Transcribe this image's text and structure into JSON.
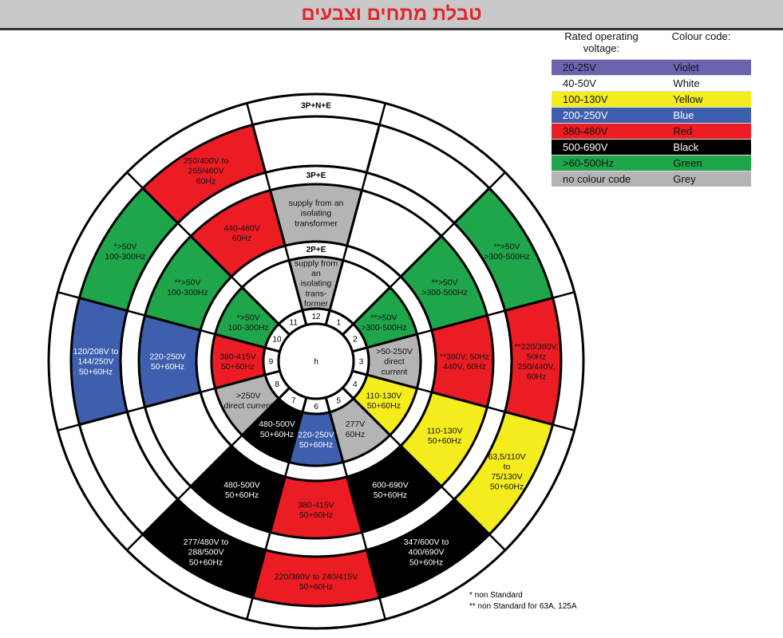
{
  "title": "טבלת מתחים וצבעים",
  "colors": {
    "violet": "#6a64ae",
    "white": "#ffffff",
    "yellow": "#f5ec1d",
    "blue": "#3e5fae",
    "red": "#ec1c24",
    "black": "#000000",
    "green": "#1fa64b",
    "grey": "#b4b4b4"
  },
  "legend": {
    "header_voltage": "Rated operating voltage:",
    "header_colour": "Colour code:",
    "rows": [
      {
        "voltage": "20-25V",
        "colour": "Violet",
        "key": "violet"
      },
      {
        "voltage": "40-50V",
        "colour": "White",
        "key": "white"
      },
      {
        "voltage": "100-130V",
        "colour": "Yellow",
        "key": "yellow"
      },
      {
        "voltage": "200-250V",
        "colour": "Blue",
        "key": "blue"
      },
      {
        "voltage": "380-480V",
        "colour": "Red",
        "key": "red"
      },
      {
        "voltage": "500-690V",
        "colour": "Black",
        "key": "black"
      },
      {
        "voltage": ">60-500Hz",
        "colour": "Green",
        "key": "green"
      },
      {
        "voltage": "no colour code",
        "colour": "Grey",
        "key": "grey"
      }
    ]
  },
  "hub_label": "h",
  "clock_numbers": [
    "12",
    "1",
    "2",
    "3",
    "4",
    "5",
    "6",
    "7",
    "8",
    "9",
    "10",
    "11"
  ],
  "rings": [
    {
      "name": "2P+E",
      "sectors": [
        {
          "color": "grey",
          "label": [
            "supply from",
            "an",
            "isolating",
            "trans-",
            "former"
          ]
        },
        {
          "color": "white",
          "label": []
        },
        {
          "color": "green",
          "label": [
            "**>50V",
            ">300-500Hz"
          ]
        },
        {
          "color": "grey",
          "label": [
            ">50-250V",
            "direct",
            "current"
          ]
        },
        {
          "color": "yellow",
          "label": [
            "110-130V",
            "50+60Hz"
          ]
        },
        {
          "color": "grey",
          "label": [
            "277V",
            "60Hz"
          ]
        },
        {
          "color": "blue",
          "label": [
            "220-250V",
            "50+60Hz"
          ]
        },
        {
          "color": "black",
          "label": [
            "480-500V",
            "50+60Hz"
          ]
        },
        {
          "color": "grey",
          "label": [
            ">250V",
            "direct current"
          ]
        },
        {
          "color": "red",
          "label": [
            "380-415V",
            "50+60Hz"
          ]
        },
        {
          "color": "green",
          "label": [
            "*>50V",
            "100-300Hz"
          ]
        },
        {
          "color": "white",
          "label": []
        }
      ]
    },
    {
      "name": "3P+E",
      "sectors": [
        {
          "color": "grey",
          "label": [
            "supply from an",
            "isolating",
            "transformer"
          ]
        },
        {
          "color": "white",
          "label": []
        },
        {
          "color": "green",
          "label": [
            "**>50V",
            ">300-500Hz"
          ]
        },
        {
          "color": "red",
          "label": [
            "**380V, 50Hz",
            "440V, 60Hz"
          ]
        },
        {
          "color": "yellow",
          "label": [
            "110-130V",
            "50+60Hz"
          ]
        },
        {
          "color": "black",
          "label": [
            "600-690V",
            "50+60Hz"
          ]
        },
        {
          "color": "red",
          "label": [
            "380-415V",
            "50+60Hz"
          ]
        },
        {
          "color": "black",
          "label": [
            "480-500V",
            "50+60Hz"
          ]
        },
        {
          "color": "white",
          "label": []
        },
        {
          "color": "blue",
          "label": [
            "220-250V",
            "50+60Hz"
          ]
        },
        {
          "color": "green",
          "label": [
            "**>50V",
            "100-300Hz"
          ]
        },
        {
          "color": "red",
          "label": [
            "440-460V",
            "60Hz"
          ]
        }
      ]
    },
    {
      "name": "3P+N+E",
      "sectors": [
        {
          "color": "white",
          "label": []
        },
        {
          "color": "white",
          "label": []
        },
        {
          "color": "green",
          "label": [
            "**>50V",
            ">300-500Hz"
          ]
        },
        {
          "color": "red",
          "label": [
            "**220/380V,",
            "50Hz",
            "250/440V,",
            "60Hz"
          ]
        },
        {
          "color": "yellow",
          "label": [
            "63,5/110V",
            "to",
            "75/130V",
            "50+60Hz"
          ]
        },
        {
          "color": "black",
          "label": [
            "347/600V to",
            "400/690V",
            "50+60Hz"
          ]
        },
        {
          "color": "red",
          "label": [
            "220/380V to 240/415V",
            "50+60Hz"
          ]
        },
        {
          "color": "black",
          "label": [
            "277/480V to",
            "288/500V",
            "50+60Hz"
          ]
        },
        {
          "color": "white",
          "label": []
        },
        {
          "color": "blue",
          "label": [
            "120/208V to",
            "144/250V",
            "50+60Hz"
          ]
        },
        {
          "color": "green",
          "label": [
            "*>50V",
            "100-300Hz"
          ]
        },
        {
          "color": "red",
          "label": [
            "250/400V to",
            "265/460V",
            "60Hz"
          ]
        }
      ]
    }
  ],
  "footnotes": [
    "* non Standard",
    "** non Standard for 63A, 125A"
  ]
}
